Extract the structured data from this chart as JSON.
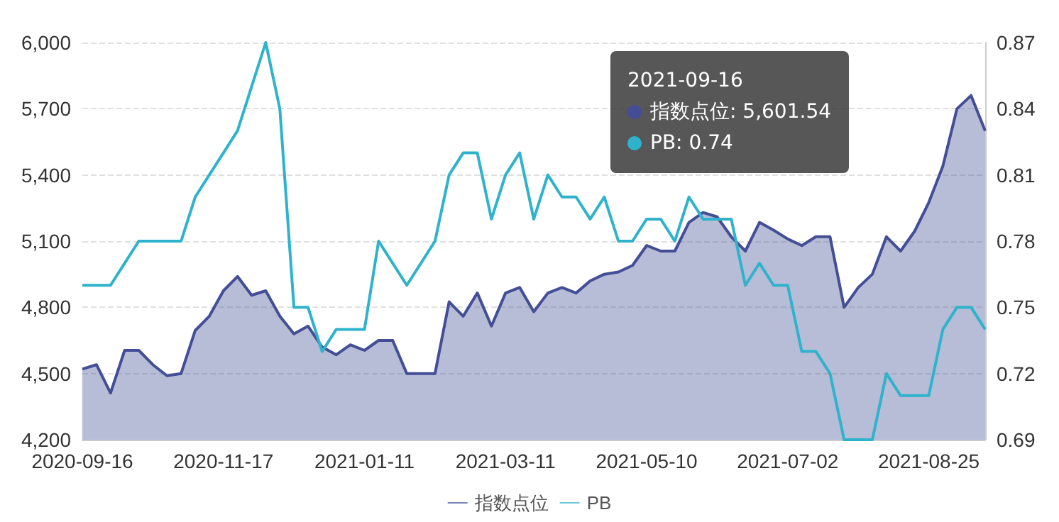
{
  "chart_data": {
    "type": "area",
    "categories": [
      "2020-09-16",
      null,
      null,
      null,
      null,
      null,
      null,
      null,
      null,
      null,
      "2020-11-17",
      null,
      null,
      null,
      null,
      null,
      null,
      null,
      null,
      null,
      "2021-01-11",
      null,
      null,
      null,
      null,
      null,
      null,
      null,
      null,
      null,
      "2021-03-11",
      null,
      null,
      null,
      null,
      null,
      null,
      null,
      null,
      null,
      "2021-05-10",
      null,
      null,
      null,
      null,
      null,
      null,
      null,
      null,
      null,
      "2021-07-02",
      null,
      null,
      null,
      null,
      null,
      null,
      null,
      null,
      null,
      "2021-08-25",
      null,
      null,
      null,
      null
    ],
    "series": [
      {
        "name": "指数点位",
        "color": "#434e96",
        "values": [
          4520,
          4540,
          4412,
          4605,
          4605,
          4540,
          4490,
          4500,
          4695,
          4760,
          4875,
          4940,
          4855,
          4875,
          4760,
          4680,
          4715,
          4620,
          4585,
          4630,
          4605,
          4650,
          4650,
          4500,
          4500,
          4500,
          4825,
          4760,
          4865,
          4715,
          4865,
          4890,
          4780,
          4865,
          4890,
          4865,
          4920,
          4950,
          4960,
          4990,
          5080,
          5055,
          5055,
          5185,
          5230,
          5210,
          5120,
          5055,
          5185,
          5150,
          5110,
          5080,
          5120,
          5120,
          4800,
          4890,
          4950,
          5120,
          5055,
          5145,
          5275,
          5440,
          5700,
          5760,
          5600
        ]
      },
      {
        "name": "PB",
        "type": "line",
        "axis": "y2",
        "color": "#2fb3cc",
        "values": [
          0.76,
          0.76,
          0.76,
          0.77,
          0.78,
          0.78,
          0.78,
          0.78,
          0.8,
          0.81,
          0.82,
          0.83,
          0.85,
          0.87,
          0.84,
          0.75,
          0.75,
          0.73,
          0.74,
          0.74,
          0.74,
          0.78,
          0.77,
          0.76,
          0.77,
          0.78,
          0.81,
          0.82,
          0.82,
          0.79,
          0.81,
          0.82,
          0.79,
          0.81,
          0.8,
          0.8,
          0.79,
          0.8,
          0.78,
          0.78,
          0.79,
          0.79,
          0.78,
          0.8,
          0.79,
          0.79,
          0.79,
          0.76,
          0.77,
          0.76,
          0.76,
          0.73,
          0.73,
          0.72,
          0.69,
          0.69,
          0.69,
          0.72,
          0.71,
          0.71,
          0.71,
          0.74,
          0.75,
          0.75,
          0.74
        ]
      }
    ],
    "ylim": [
      4200,
      6000
    ],
    "yticks": [
      {
        "value": 4200,
        "label": "4,200"
      },
      {
        "value": 4500,
        "label": "4,500"
      },
      {
        "value": 4800,
        "label": "4,800"
      },
      {
        "value": 5100,
        "label": "5,100"
      },
      {
        "value": 5400,
        "label": "5,400"
      },
      {
        "value": 5700,
        "label": "5,700"
      },
      {
        "value": 6000,
        "label": "6,000"
      }
    ],
    "y2lim": [
      0.69,
      0.87
    ],
    "y2ticks": [
      0.69,
      0.72,
      0.75,
      0.78,
      0.81,
      0.84,
      0.87
    ],
    "grid": "y",
    "legend": "bottom",
    "marker": "none",
    "line_style": "solid",
    "annotations": [
      "2021-09-16",
      "指数点位: 5,601.54",
      "PB: 0.74"
    ]
  }
}
